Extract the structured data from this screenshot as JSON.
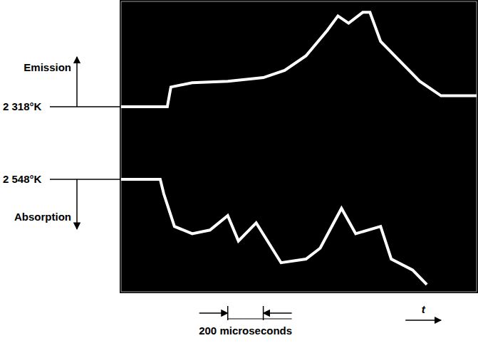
{
  "chart_data": {
    "type": "line",
    "xlim": [
      0,
      10
    ],
    "xticks": [
      0,
      1,
      2,
      3,
      4,
      5,
      6,
      7,
      8,
      9,
      10
    ],
    "ylim": [
      0,
      8
    ],
    "yticks": [
      0,
      1,
      2,
      3,
      4,
      5,
      6,
      7,
      8
    ],
    "grid": true,
    "tick_labels": false,
    "series": [
      {
        "name": "Emission",
        "color": "#ffffff",
        "x": [
          0,
          1.3,
          1.4,
          2,
          3,
          4,
          4.6,
          5.2,
          5.8,
          6.1,
          6.4,
          6.8,
          7.0,
          7.3,
          7.8,
          8.4,
          9.0,
          10
        ],
        "values": [
          5.1,
          5.1,
          5.64,
          5.76,
          5.8,
          5.9,
          6.1,
          6.5,
          7.2,
          7.6,
          7.4,
          7.7,
          7.7,
          6.9,
          6.4,
          5.8,
          5.4,
          5.4
        ]
      },
      {
        "name": "Absorption",
        "color": "#ffffff",
        "x": [
          0,
          1.1,
          1.2,
          1.5,
          2,
          2.5,
          3,
          3.3,
          3.8,
          4.5,
          5.2,
          5.6,
          6.2,
          6.6,
          7.3,
          7.6,
          8.2,
          8.6
        ],
        "values": [
          3.1,
          3.1,
          2.7,
          1.8,
          1.6,
          1.7,
          2.1,
          1.4,
          1.9,
          0.8,
          0.9,
          1.2,
          2.3,
          1.6,
          1.8,
          0.9,
          0.6,
          0.2
        ]
      }
    ],
    "reference_lines": [
      {
        "label": "2 318°K",
        "value": 5.1
      },
      {
        "label": "2 548°K",
        "value": 3.1
      }
    ],
    "annotations": [
      "200 microseconds",
      "t"
    ]
  }
}
